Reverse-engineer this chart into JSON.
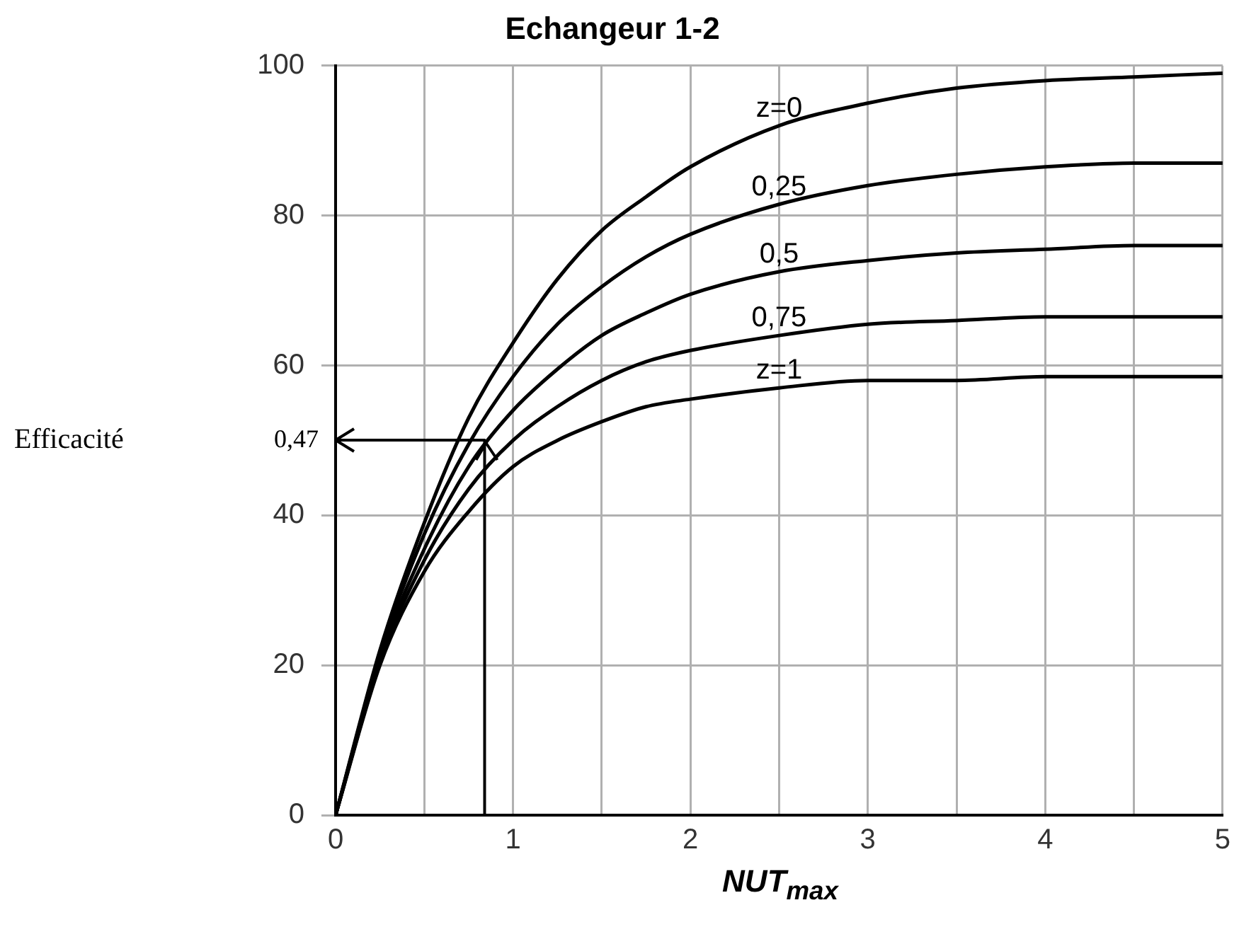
{
  "chart_data": {
    "type": "line",
    "title": "Echangeur 1-2",
    "xlabel": "NUT$_{max}$",
    "x": [
      0,
      0.25,
      0.5,
      0.75,
      1,
      1.25,
      1.5,
      1.75,
      2,
      2.5,
      3,
      3.5,
      4,
      4.5,
      5
    ],
    "series": [
      {
        "name": "z=0",
        "color": "#000000",
        "values": [
          0,
          22,
          39,
          53,
          63,
          71.5,
          78,
          82.5,
          86.5,
          92,
          95,
          97,
          98,
          98.5,
          99
        ]
      },
      {
        "name": "0,25",
        "color": "#000000",
        "values": [
          0,
          21.5,
          37.5,
          49.5,
          58.5,
          65.5,
          70.5,
          74.5,
          77.5,
          81.5,
          84,
          85.5,
          86.5,
          87,
          87
        ]
      },
      {
        "name": "0,5",
        "color": "#000000",
        "values": [
          0,
          21,
          35.5,
          46.5,
          54,
          59.5,
          64,
          67,
          69.5,
          72.5,
          74,
          75,
          75.5,
          76,
          76
        ]
      },
      {
        "name": "0,75",
        "color": "#000000",
        "values": [
          0,
          20.5,
          34,
          43.5,
          50,
          54.5,
          58,
          60.5,
          62,
          64,
          65.5,
          66,
          66.5,
          66.5,
          66.5
        ]
      },
      {
        "name": "z=1",
        "color": "#000000",
        "values": [
          0,
          20,
          32.5,
          40.5,
          46.5,
          50,
          52.5,
          54.5,
          55.5,
          57,
          58,
          58,
          58.5,
          58.5,
          58.5
        ]
      }
    ],
    "xlim": [
      0,
      5
    ],
    "xticks": [
      0,
      {
        "value": 0.5,
        "label": null
      },
      1,
      {
        "value": 1.5,
        "label": null
      },
      2,
      {
        "value": 2.5,
        "label": null
      },
      3,
      {
        "value": 3.5,
        "label": null
      },
      4,
      {
        "value": 4.5,
        "label": null
      },
      5
    ],
    "ylim": [
      0,
      100
    ],
    "yticks": [
      0,
      20,
      40,
      60,
      80,
      100
    ],
    "grid": true,
    "legend": false,
    "marker": "none",
    "line_style": "solid",
    "annotations": [
      "Efficacité",
      "0,47"
    ]
  }
}
